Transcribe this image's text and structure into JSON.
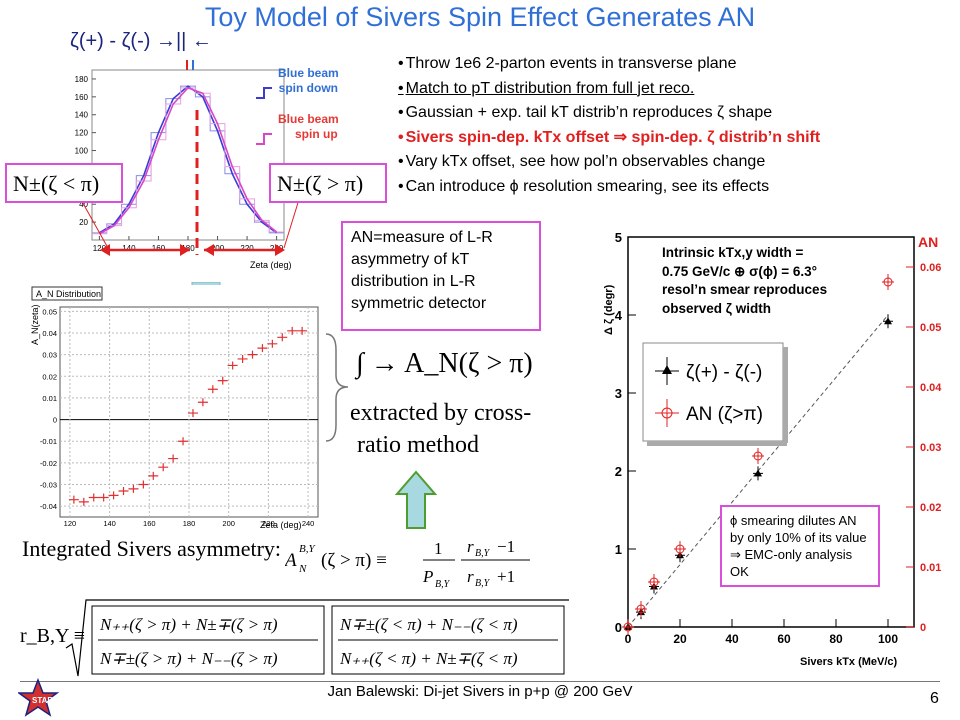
{
  "slide": {
    "title": "Toy Model of Sivers Spin Effect Generates AN",
    "page_number": "6",
    "footer": "Jan Balewski: Di-jet Sivers in p+p @ 200 GeV"
  },
  "top_plot": {
    "zeta_label": "ζ(+) - ζ(-) →|| ←",
    "beam_down_label_1": "Blue beam",
    "beam_down_label_2": "spin down",
    "beam_up_label_1": "Blue beam",
    "beam_up_label_2": "spin up",
    "xlabel": "Zeta (deg)",
    "x_ticks": [
      "120",
      "140",
      "160",
      "180",
      "200",
      "220",
      "240"
    ],
    "y_ticks": [
      "20",
      "40",
      "60",
      "80",
      "100",
      "120",
      "140",
      "160",
      "180"
    ],
    "left_box": "N±(ζ < π)",
    "right_box": "N±(ζ > π)"
  },
  "bullets": [
    "Throw 1e6 2-parton events in transverse plane",
    "Match to pT distribution from full jet reco.",
    "Gaussian + exp. tail kT distrib’n reproduces ζ shape",
    "Sivers spin-dep. kTx offset ⇒ spin-dep. ζ distrib’n shift",
    "Vary kTx offset, see how pol’n observables change",
    "Can introduce ϕ resolution smearing, see its effects"
  ],
  "an_box": {
    "line1": "AN=measure of L-R",
    "line2": "asymmetry of kT",
    "line3": "distribution in L-R",
    "line4": "symmetric detector"
  },
  "an_plot": {
    "title": "A_N Distribution",
    "ylabel": "A_N(zeta)",
    "xlabel": "Zeta (deg)",
    "x_ticks": [
      "120",
      "140",
      "160",
      "180",
      "200",
      "220",
      "240"
    ],
    "y_ticks": [
      "-0.04",
      "-0.03",
      "-0.02",
      "-0.01",
      "0",
      "0.01",
      "0.02",
      "0.03",
      "0.04",
      "0.05"
    ]
  },
  "formulas": {
    "integral": "∫ → A_N(ζ > π)",
    "extracted_1": "extracted by cross-",
    "extracted_2": "ratio method",
    "integrated_label": "Integrated Sivers asymmetry:",
    "rby_label": "r_B,Y ≡"
  },
  "right_plot": {
    "intrinsic_1": "Intrinsic  kTx,y width =",
    "intrinsic_2": "0.75 GeV/c ⊕    σ(ϕ) = 6.3°",
    "intrinsic_3": "resol’n smear reproduces",
    "intrinsic_4": "observed ζ width",
    "ylabel_left": "Δ ζ (degr)",
    "ylabel_right": "AN",
    "xlabel": "Sivers kTx (MeV/c)",
    "legend_1": "ζ(+) - ζ(-)",
    "legend_2": "AN (ζ>π)",
    "smear_text": "ϕ smearing dilutes AN by only 10% of its value ⇒ EMC-only analysis OK"
  },
  "chart_data": [
    {
      "type": "line",
      "title": "",
      "xlabel": "Zeta (deg)",
      "ylabel": "",
      "xlim": [
        115,
        245
      ],
      "ylim": [
        0,
        190
      ],
      "series": [
        {
          "name": "Blue beam spin down",
          "x": [
            120,
            130,
            140,
            150,
            160,
            170,
            180,
            190,
            200,
            210,
            220,
            230,
            240
          ],
          "values": [
            8,
            18,
            40,
            72,
            120,
            158,
            172,
            160,
            122,
            74,
            40,
            20,
            8
          ],
          "color": "#3b3bd6"
        },
        {
          "name": "Blue beam spin up",
          "x": [
            120,
            130,
            140,
            150,
            160,
            170,
            180,
            190,
            200,
            210,
            220,
            230,
            240
          ],
          "values": [
            7,
            16,
            36,
            66,
            112,
            152,
            170,
            164,
            130,
            82,
            46,
            22,
            9
          ],
          "color": "#d946c8"
        }
      ]
    },
    {
      "type": "scatter",
      "title": "A_N Distribution",
      "xlabel": "Zeta (deg)",
      "ylabel": "A_N(zeta)",
      "xlim": [
        115,
        245
      ],
      "ylim": [
        -0.045,
        0.052
      ],
      "series": [
        {
          "x": [
            122,
            127,
            132,
            137,
            142,
            147,
            152,
            157,
            162,
            167,
            172,
            177,
            182,
            187,
            192,
            197,
            202,
            207,
            212,
            217,
            222,
            227,
            232,
            237
          ],
          "values": [
            -0.037,
            -0.038,
            -0.036,
            -0.036,
            -0.035,
            -0.033,
            -0.032,
            -0.03,
            -0.026,
            -0.022,
            -0.018,
            -0.01,
            0.003,
            0.008,
            0.014,
            0.018,
            0.025,
            0.028,
            0.03,
            0.033,
            0.035,
            0.038,
            0.041,
            0.041
          ],
          "color": "#e03030"
        }
      ]
    },
    {
      "type": "scatter",
      "title": "",
      "xlabel": "Sivers kTx (MeV/c)",
      "ylabel": "Δ ζ (degr)",
      "xlim": [
        0,
        110
      ],
      "ylim": [
        0,
        5
      ],
      "x_ticks": [
        "0",
        "20",
        "40",
        "60",
        "80",
        "100"
      ],
      "y_ticks": [
        "0",
        "1",
        "2",
        "3",
        "4",
        "5"
      ],
      "y2_label": "AN",
      "y2_ticks": [
        "0",
        "0.01",
        "0.02",
        "0.03",
        "0.04",
        "0.05",
        "0.06"
      ],
      "series": [
        {
          "name": "ζ(+) - ζ(-)",
          "x": [
            0,
            5,
            10,
            20,
            50,
            100
          ],
          "values": [
            0.0,
            0.19,
            0.52,
            0.92,
            1.97,
            3.92
          ],
          "color": "#111111"
        },
        {
          "name": "AN (ζ>π)",
          "x": [
            0,
            5,
            10,
            20,
            50,
            100
          ],
          "values": [
            0.0,
            0.003,
            0.0075,
            0.013,
            0.0285,
            0.0575
          ],
          "color": "#e02020"
        }
      ]
    }
  ]
}
